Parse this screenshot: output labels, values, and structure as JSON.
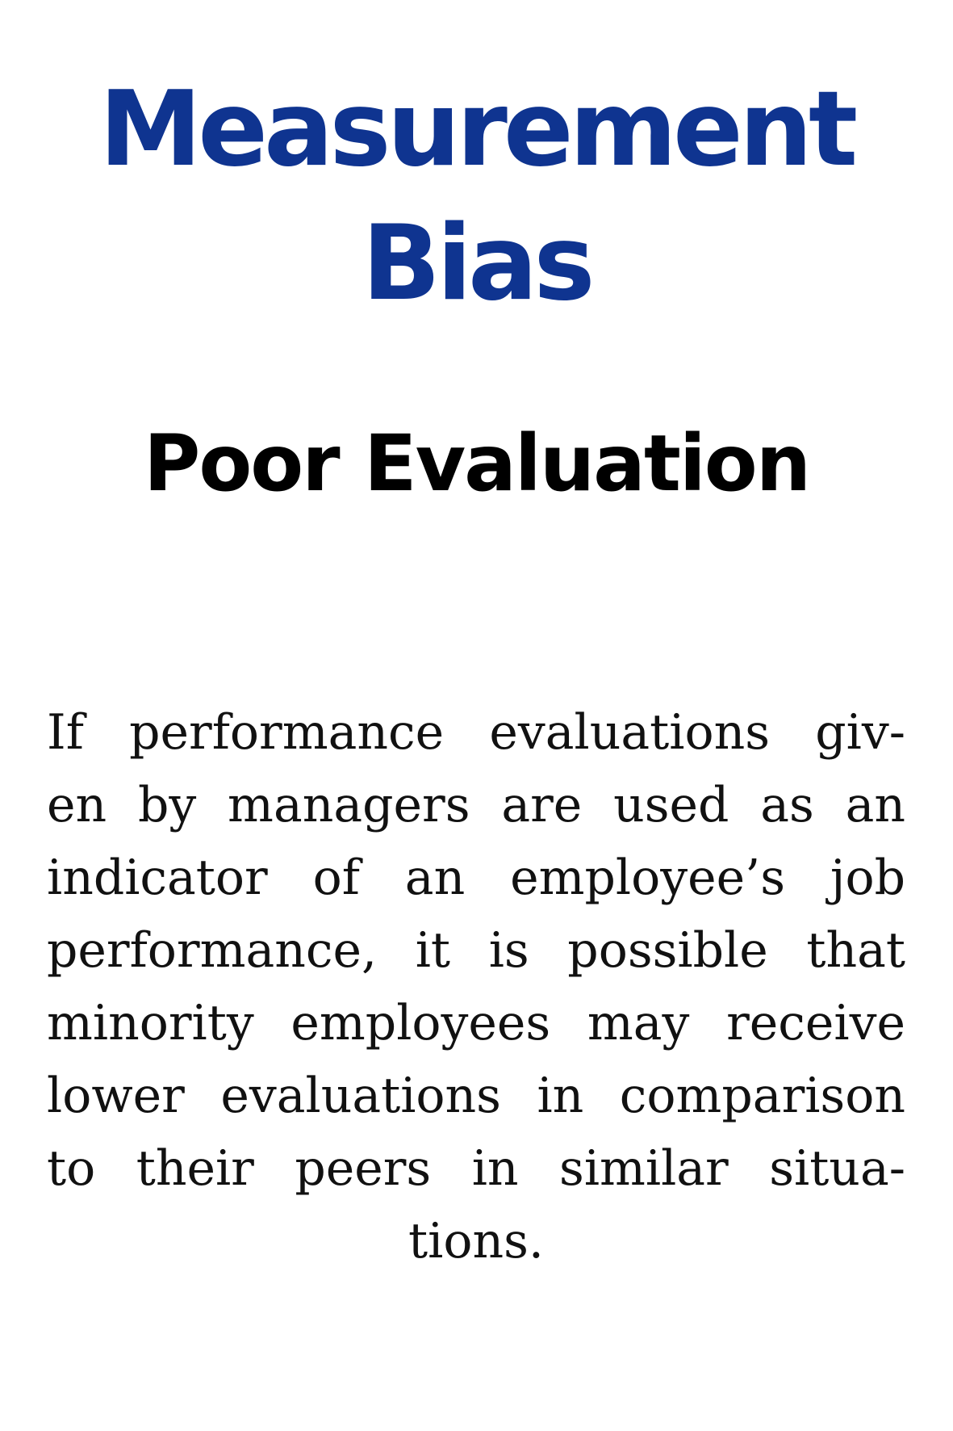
{
  "title": {
    "line1": "Measurement",
    "line2": "Bias"
  },
  "subtitle": "Poor Evaluation",
  "body": {
    "lines": [
      "If performance evaluations giv-",
      "en by managers are used as an",
      "indicator of an employee’s job",
      "performance, it is possible that",
      "minority employees may receive",
      "lower evaluations in comparison",
      "to their peers in similar situa-",
      "tions."
    ]
  },
  "colors": {
    "title": "#0f3490",
    "subtitle": "#000000",
    "body": "#111111",
    "background": "#ffffff"
  }
}
